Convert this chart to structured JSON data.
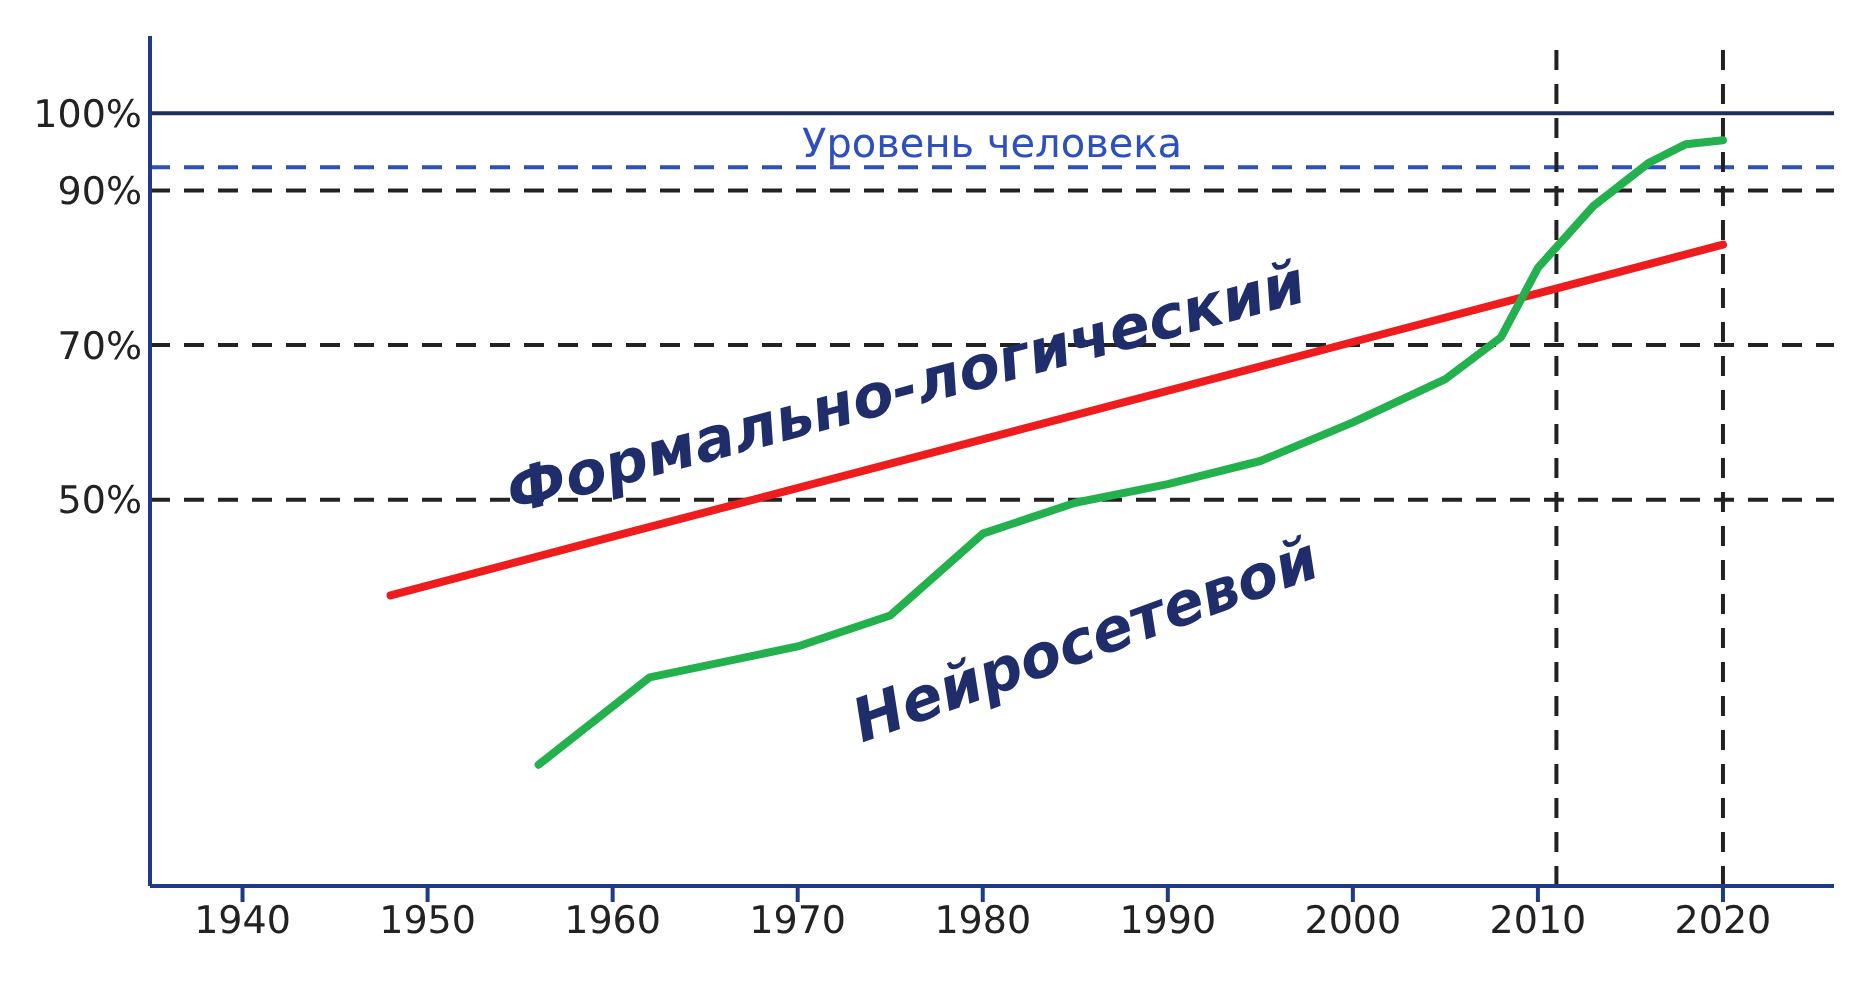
{
  "chart_data": {
    "type": "line",
    "marker": "none",
    "line_style": "solid",
    "xlim": [
      1935,
      2026
    ],
    "xticks": [
      1940,
      1950,
      1960,
      1970,
      1980,
      1990,
      2000,
      2010,
      2020
    ],
    "ylim": [
      0,
      110
    ],
    "yticks": [
      {
        "value": 50,
        "label": "50%"
      },
      {
        "value": 70,
        "label": "70%"
      },
      {
        "value": 90,
        "label": "90%"
      },
      {
        "value": 100,
        "label": "100%"
      }
    ],
    "series": [
      {
        "name": "Формально-логический",
        "color": "#ee1c1c",
        "x": [
          1948,
          1960,
          1980,
          2000,
          2010,
          2020
        ],
        "values": [
          37.6,
          45.2,
          57.8,
          70.4,
          76.7,
          83
        ]
      },
      {
        "name": "Нейросетевой",
        "color": "#22b14c",
        "x": [
          1956,
          1962,
          1970,
          1975,
          1980,
          1985,
          1990,
          1995,
          2000,
          2005,
          2008,
          2010,
          2013,
          2016,
          2018,
          2020
        ],
        "values": [
          15.7,
          27,
          31,
          35,
          45.6,
          49.6,
          52,
          55,
          60,
          65.6,
          71,
          80,
          88,
          93.6,
          96,
          96.5
        ]
      }
    ],
    "ref_lines": [
      {
        "axis": "y",
        "value": 100,
        "color": "#1f2d5a",
        "line_style": "solid"
      },
      {
        "axis": "y",
        "value": 93,
        "label": "Уровень человека",
        "color": "#2e4fbf",
        "line_style": "dashed"
      },
      {
        "axis": "y",
        "value": 90,
        "color": "#222222",
        "line_style": "dashed"
      },
      {
        "axis": "y",
        "value": 70,
        "color": "#222222",
        "line_style": "dashed"
      },
      {
        "axis": "y",
        "value": 50,
        "color": "#222222",
        "line_style": "dashed"
      },
      {
        "axis": "x",
        "value": 2011,
        "color": "#222222",
        "line_style": "dashed"
      },
      {
        "axis": "x",
        "value": 2020,
        "color": "#222222",
        "line_style": "dashed"
      }
    ]
  }
}
